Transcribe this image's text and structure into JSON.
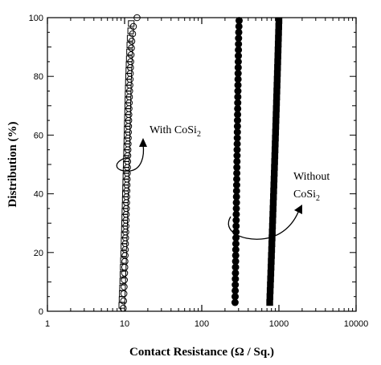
{
  "chart_data": {
    "type": "scatter",
    "xlabel": "Contact Resistance (Ω / Sq.)",
    "ylabel": "Distribution (%)",
    "xscale": "log",
    "xlim": [
      1,
      10000
    ],
    "ylim": [
      0,
      100
    ],
    "x_ticks": [
      {
        "value": 1,
        "label": "1"
      },
      {
        "value": 10,
        "label": "10"
      },
      {
        "value": 100,
        "label": "100"
      },
      {
        "value": 1000,
        "label": "1000"
      },
      {
        "value": 10000,
        "label": "10000"
      }
    ],
    "y_ticks": [
      {
        "value": 0,
        "label": "0"
      },
      {
        "value": 20,
        "label": "20"
      },
      {
        "value": 40,
        "label": "40"
      },
      {
        "value": 60,
        "label": "60"
      },
      {
        "value": 80,
        "label": "80"
      },
      {
        "value": 100,
        "label": "100"
      }
    ],
    "grid": false,
    "series": [
      {
        "marker": "open-square",
        "color": "#000000",
        "points": [
          [
            9.2,
            2
          ],
          [
            9.4,
            8
          ],
          [
            9.6,
            15
          ],
          [
            9.8,
            22
          ],
          [
            10.0,
            30
          ],
          [
            10.2,
            38
          ],
          [
            10.4,
            46
          ],
          [
            10.6,
            54
          ],
          [
            10.8,
            62
          ],
          [
            11.0,
            70
          ],
          [
            11.2,
            78
          ],
          [
            11.5,
            86
          ],
          [
            11.8,
            93
          ],
          [
            12.2,
            98
          ]
        ]
      },
      {
        "marker": "open-circle",
        "color": "#000000",
        "points": [
          [
            9.6,
            1
          ],
          [
            9.8,
            6
          ],
          [
            10.0,
            13
          ],
          [
            10.2,
            21
          ],
          [
            10.4,
            29
          ],
          [
            10.6,
            37
          ],
          [
            10.8,
            45
          ],
          [
            11.0,
            53
          ],
          [
            11.2,
            61
          ],
          [
            11.4,
            69
          ],
          [
            11.7,
            77
          ],
          [
            12.0,
            85
          ],
          [
            12.4,
            92
          ],
          [
            13.0,
            97
          ],
          [
            14.5,
            100
          ]
        ]
      },
      {
        "marker": "filled-circle",
        "color": "#000000",
        "points": [
          [
            270,
            3
          ],
          [
            272,
            9
          ],
          [
            274,
            15
          ],
          [
            276,
            21
          ],
          [
            278,
            27
          ],
          [
            280,
            33
          ],
          [
            282,
            39
          ],
          [
            284,
            45
          ],
          [
            286,
            51
          ],
          [
            288,
            57
          ],
          [
            290,
            63
          ],
          [
            292,
            69
          ],
          [
            294,
            75
          ],
          [
            296,
            81
          ],
          [
            298,
            87
          ],
          [
            300,
            93
          ],
          [
            305,
            99
          ]
        ]
      },
      {
        "marker": "filled-square",
        "color": "#000000",
        "points": [
          [
            760,
            3
          ],
          [
            775,
            9
          ],
          [
            790,
            15
          ],
          [
            805,
            21
          ],
          [
            820,
            27
          ],
          [
            835,
            33
          ],
          [
            850,
            39
          ],
          [
            865,
            45
          ],
          [
            880,
            51
          ],
          [
            895,
            57
          ],
          [
            910,
            63
          ],
          [
            925,
            69
          ],
          [
            940,
            75
          ],
          [
            955,
            81
          ],
          [
            970,
            87
          ],
          [
            985,
            93
          ],
          [
            1000,
            99
          ]
        ]
      }
    ],
    "annotations": [
      {
        "text": "With CoSi",
        "subscript": "2",
        "target_x": 11,
        "target_y": 60
      },
      {
        "text": "Without",
        "line2": "CoSi",
        "subscript": "2",
        "target_x": 800,
        "target_y": 40
      }
    ]
  }
}
